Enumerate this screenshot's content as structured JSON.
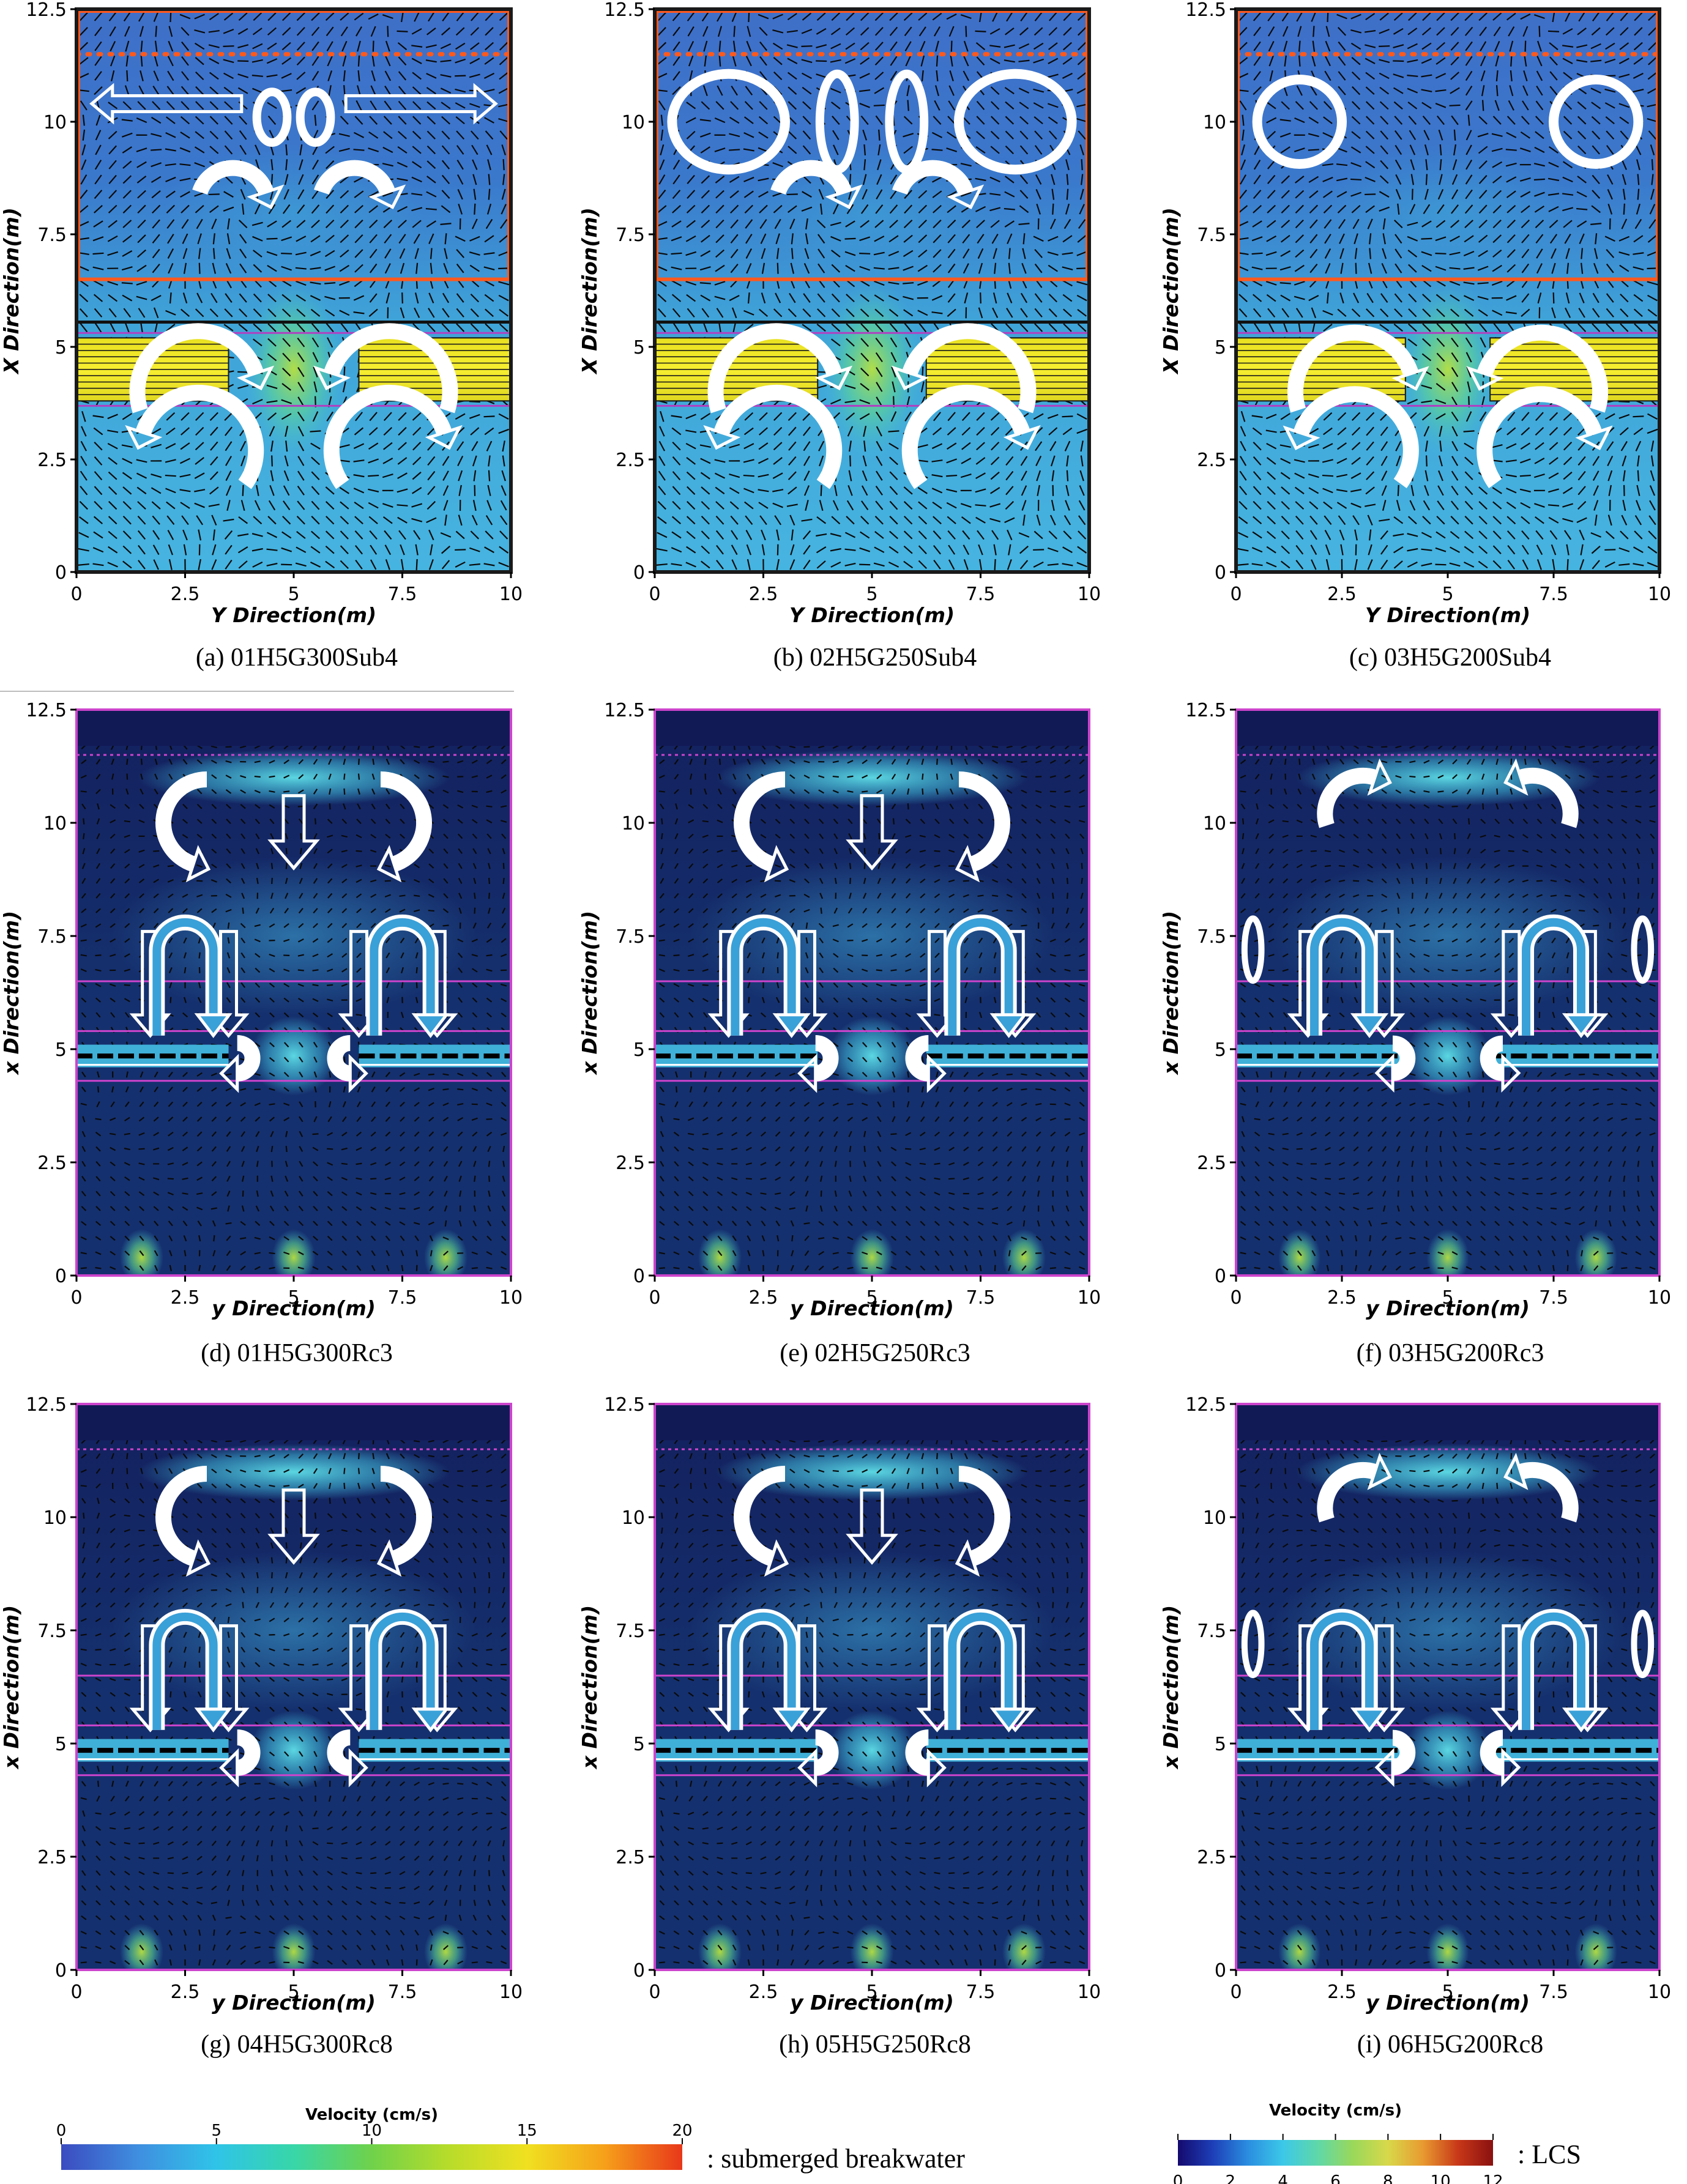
{
  "figure": {
    "colormaps": {
      "rainbow": [
        "#3b4cc0",
        "#3f8fe0",
        "#2fc4e8",
        "#38d6a8",
        "#6fd24a",
        "#b8dc2a",
        "#f0e020",
        "#f6a01a",
        "#e8381a"
      ],
      "jet": [
        "#140a6e",
        "#1d3fb8",
        "#2a8ee0",
        "#3cc8e8",
        "#5fd8a8",
        "#9ad85a",
        "#d8d84a",
        "#e89a30",
        "#c83818",
        "#8a1010"
      ]
    },
    "colors": {
      "frame_sub": "#1a1a1a",
      "zone_line_sub": "#ff5a1e",
      "zone_line_lcs": "#cc44cc",
      "breakwater_sub": "#f2ea30",
      "arrow_outline": "#ffffff"
    },
    "legends": {
      "submerged": {
        "title": "Velocity (cm/s)",
        "ticks": [
          0,
          5,
          10,
          15,
          20
        ],
        "label": ": submerged breakwater"
      },
      "lcs": {
        "title": "Velocity (cm/s)",
        "ticks": [
          0,
          2,
          4,
          6,
          8,
          10,
          12
        ],
        "label": ": LCS"
      }
    }
  },
  "chart_data": [
    {
      "type": "heatmap",
      "panel": "a",
      "title": "(a) 01H5G300Sub4",
      "structure": "submerged breakwater",
      "xlabel": "Y Direction(m)",
      "ylabel": "X Direction(m)",
      "xlim": [
        0,
        10
      ],
      "ylim": [
        0,
        12.5
      ],
      "xticks": [
        0,
        2.5,
        5,
        7.5,
        10
      ],
      "yticks": [
        0,
        2.5,
        5,
        7.5,
        10,
        12.5
      ],
      "breakwater": {
        "segments": [
          [
            0,
            3.5
          ],
          [
            6.5,
            10
          ]
        ],
        "x_range": [
          3.8,
          5.2
        ]
      },
      "zone_lines": [
        6.5,
        11.5,
        12.5
      ],
      "circulation_cells": 6
    },
    {
      "type": "heatmap",
      "panel": "b",
      "title": "(b) 02H5G250Sub4",
      "structure": "submerged breakwater",
      "xlabel": "Y Direction(m)",
      "ylabel": "X Direction(m)",
      "xlim": [
        0,
        10
      ],
      "ylim": [
        0,
        12.5
      ],
      "xticks": [
        0,
        2.5,
        5,
        7.5,
        10
      ],
      "yticks": [
        0,
        2.5,
        5,
        7.5,
        10,
        12.5
      ],
      "breakwater": {
        "segments": [
          [
            0,
            3.75
          ],
          [
            6.25,
            10
          ]
        ],
        "x_range": [
          3.8,
          5.2
        ]
      },
      "zone_lines": [
        6.5,
        11.5,
        12.5
      ],
      "circulation_cells": 8
    },
    {
      "type": "heatmap",
      "panel": "c",
      "title": "(c) 03H5G200Sub4",
      "structure": "submerged breakwater",
      "xlabel": "Y Direction(m)",
      "ylabel": "X Direction(m)",
      "xlim": [
        0,
        10
      ],
      "ylim": [
        0,
        12.5
      ],
      "xticks": [
        0,
        2.5,
        5,
        7.5,
        10
      ],
      "yticks": [
        0,
        2.5,
        5,
        7.5,
        10,
        12.5
      ],
      "breakwater": {
        "segments": [
          [
            0,
            4.0
          ],
          [
            6.0,
            10
          ]
        ],
        "x_range": [
          3.8,
          5.2
        ]
      },
      "zone_lines": [
        6.5,
        11.5,
        12.5
      ],
      "circulation_cells": 4
    },
    {
      "type": "heatmap",
      "panel": "d",
      "title": "(d) 01H5G300Rc3",
      "structure": "LCS",
      "xlabel": "y Direction(m)",
      "ylabel": "x Direction(m)",
      "xlim": [
        0,
        10
      ],
      "ylim": [
        0,
        12.5
      ],
      "xticks": [
        0,
        2.5,
        5,
        7.5,
        10
      ],
      "yticks": [
        0,
        2.5,
        5,
        7.5,
        10,
        12.5
      ],
      "breakwater": {
        "segments": [
          [
            0,
            3.5
          ],
          [
            6.5,
            10
          ]
        ],
        "x_range": [
          4.6,
          5.1
        ]
      },
      "zone_lines": [
        4.3,
        5.4,
        6.5,
        11.5
      ]
    },
    {
      "type": "heatmap",
      "panel": "e",
      "title": "(e) 02H5G250Rc3",
      "structure": "LCS",
      "xlabel": "y Direction(m)",
      "ylabel": "x Direction(m)",
      "xlim": [
        0,
        10
      ],
      "ylim": [
        0,
        12.5
      ],
      "xticks": [
        0,
        2.5,
        5,
        7.5,
        10
      ],
      "yticks": [
        0,
        2.5,
        5,
        7.5,
        10,
        12.5
      ],
      "breakwater": {
        "segments": [
          [
            0,
            3.75
          ],
          [
            6.25,
            10
          ]
        ],
        "x_range": [
          4.6,
          5.1
        ]
      },
      "zone_lines": [
        4.3,
        5.4,
        6.5,
        11.5
      ]
    },
    {
      "type": "heatmap",
      "panel": "f",
      "title": "(f) 03H5G200Rc3",
      "structure": "LCS",
      "xlabel": "y Direction(m)",
      "ylabel": "x Direction(m)",
      "xlim": [
        0,
        10
      ],
      "ylim": [
        0,
        12.5
      ],
      "xticks": [
        0,
        2.5,
        5,
        7.5,
        10
      ],
      "yticks": [
        0,
        2.5,
        5,
        7.5,
        10,
        12.5
      ],
      "breakwater": {
        "segments": [
          [
            0,
            4.0
          ],
          [
            6.0,
            10
          ]
        ],
        "x_range": [
          4.6,
          5.1
        ]
      },
      "zone_lines": [
        4.3,
        5.4,
        6.5,
        11.5
      ]
    },
    {
      "type": "heatmap",
      "panel": "g",
      "title": "(g) 04H5G300Rc8",
      "structure": "LCS",
      "xlabel": "y Direction(m)",
      "ylabel": "x Direction(m)",
      "xlim": [
        0,
        10
      ],
      "ylim": [
        0,
        12.5
      ],
      "xticks": [
        0,
        2.5,
        5,
        7.5,
        10
      ],
      "yticks": [
        0,
        2.5,
        5,
        7.5,
        10,
        12.5
      ],
      "breakwater": {
        "segments": [
          [
            0,
            3.5
          ],
          [
            6.5,
            10
          ]
        ],
        "x_range": [
          4.6,
          5.1
        ]
      },
      "zone_lines": [
        4.3,
        5.4,
        6.5,
        11.5
      ]
    },
    {
      "type": "heatmap",
      "panel": "h",
      "title": "(h) 05H5G250Rc8",
      "structure": "LCS",
      "xlabel": "y Direction(m)",
      "ylabel": "x Direction(m)",
      "xlim": [
        0,
        10
      ],
      "ylim": [
        0,
        12.5
      ],
      "xticks": [
        0,
        2.5,
        5,
        7.5,
        10
      ],
      "yticks": [
        0,
        2.5,
        5,
        7.5,
        10,
        12.5
      ],
      "breakwater": {
        "segments": [
          [
            0,
            3.75
          ],
          [
            6.25,
            10
          ]
        ],
        "x_range": [
          4.6,
          5.1
        ]
      },
      "zone_lines": [
        4.3,
        5.4,
        6.5,
        11.5
      ]
    },
    {
      "type": "heatmap",
      "panel": "i",
      "title": "(i) 06H5G200Rc8",
      "structure": "LCS",
      "xlabel": "y Direction(m)",
      "ylabel": "x Direction(m)",
      "xlim": [
        0,
        10
      ],
      "ylim": [
        0,
        12.5
      ],
      "xticks": [
        0,
        2.5,
        5,
        7.5,
        10
      ],
      "yticks": [
        0,
        2.5,
        5,
        7.5,
        10,
        12.5
      ],
      "breakwater": {
        "segments": [
          [
            0,
            4.0
          ],
          [
            6.0,
            10
          ]
        ],
        "x_range": [
          4.6,
          5.1
        ]
      },
      "zone_lines": [
        4.3,
        5.4,
        6.5,
        11.5
      ]
    }
  ]
}
